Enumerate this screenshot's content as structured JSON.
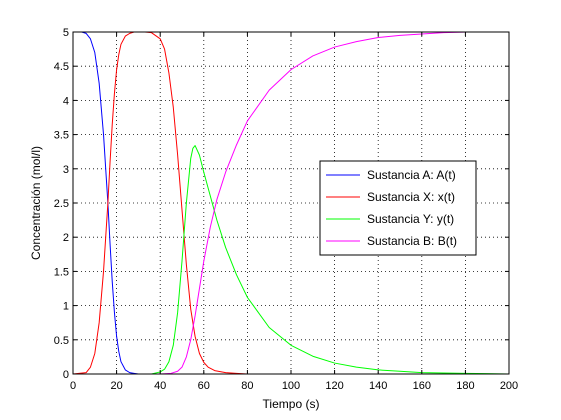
{
  "chart_data": {
    "type": "line",
    "xlabel": "Tiempo (s)",
    "ylabel": "Concentración (mol/l)",
    "xlim": [
      0,
      200
    ],
    "ylim": [
      0,
      5
    ],
    "xticks": [
      0,
      20,
      40,
      60,
      80,
      100,
      120,
      140,
      160,
      180,
      200
    ],
    "yticks": [
      0,
      0.5,
      1,
      1.5,
      2,
      2.5,
      3,
      3.5,
      4,
      4.5,
      5
    ],
    "xtick_labels": [
      "0",
      "20",
      "40",
      "60",
      "80",
      "100",
      "120",
      "140",
      "160",
      "180",
      "200"
    ],
    "ytick_labels": [
      "0",
      "0.5",
      "1",
      "1.5",
      "2",
      "2.5",
      "3",
      "3.5",
      "4",
      "4.5",
      "5"
    ],
    "grid": true,
    "legend_position": "center-right",
    "series": [
      {
        "name": "Sustancia A: A(t)",
        "color": "#0000ff",
        "x": [
          0,
          4,
          6,
          8,
          10,
          12,
          14,
          16,
          17,
          18,
          19,
          20,
          21,
          22,
          24,
          26,
          28,
          30,
          180
        ],
        "y": [
          5.0,
          5.0,
          4.98,
          4.9,
          4.7,
          4.25,
          3.5,
          2.5,
          1.9,
          1.35,
          0.9,
          0.55,
          0.33,
          0.18,
          0.06,
          0.02,
          0.01,
          0.0,
          0.0
        ]
      },
      {
        "name": "Sustancia X: x(t)",
        "color": "#ff0000",
        "x": [
          0,
          6,
          8,
          10,
          12,
          14,
          16,
          17,
          18,
          19,
          20,
          21,
          22,
          24,
          26,
          28,
          30,
          33,
          36,
          40,
          42,
          44,
          46,
          48,
          50,
          52,
          54,
          56,
          58,
          60,
          62,
          65,
          70,
          75,
          80,
          90,
          180
        ],
        "y": [
          0.0,
          0.02,
          0.1,
          0.3,
          0.75,
          1.5,
          2.5,
          3.1,
          3.65,
          4.1,
          4.45,
          4.67,
          4.82,
          4.94,
          4.98,
          5.0,
          5.0,
          5.0,
          4.99,
          4.9,
          4.75,
          4.4,
          3.9,
          3.2,
          2.4,
          1.6,
          0.95,
          0.55,
          0.3,
          0.17,
          0.1,
          0.05,
          0.02,
          0.01,
          0.0,
          0.0,
          0.0
        ]
      },
      {
        "name": "Sustancia Y: y(t)",
        "color": "#00ff00",
        "x": [
          0,
          36,
          40,
          42,
          44,
          46,
          48,
          50,
          52,
          54,
          55,
          56,
          58,
          60,
          63,
          66,
          70,
          75,
          80,
          90,
          100,
          110,
          120,
          130,
          140,
          150,
          160,
          170,
          180,
          190,
          200
        ],
        "y": [
          0.0,
          0.0,
          0.03,
          0.07,
          0.18,
          0.42,
          0.9,
          1.65,
          2.5,
          3.15,
          3.3,
          3.34,
          3.2,
          2.95,
          2.6,
          2.25,
          1.85,
          1.45,
          1.12,
          0.68,
          0.42,
          0.26,
          0.16,
          0.1,
          0.06,
          0.04,
          0.02,
          0.015,
          0.01,
          0.005,
          0.0
        ]
      },
      {
        "name": "Sustancia B: B(t)",
        "color": "#ff00ff",
        "x": [
          0,
          40,
          45,
          48,
          50,
          52,
          54,
          56,
          58,
          60,
          63,
          66,
          70,
          75,
          80,
          90,
          100,
          110,
          120,
          130,
          140,
          150,
          160,
          170,
          181
        ],
        "y": [
          0.0,
          0.0,
          0.01,
          0.04,
          0.1,
          0.25,
          0.5,
          0.85,
          1.25,
          1.65,
          2.15,
          2.55,
          2.95,
          3.35,
          3.7,
          4.15,
          4.45,
          4.65,
          4.78,
          4.86,
          4.92,
          4.95,
          4.97,
          4.99,
          5.0
        ]
      }
    ]
  }
}
